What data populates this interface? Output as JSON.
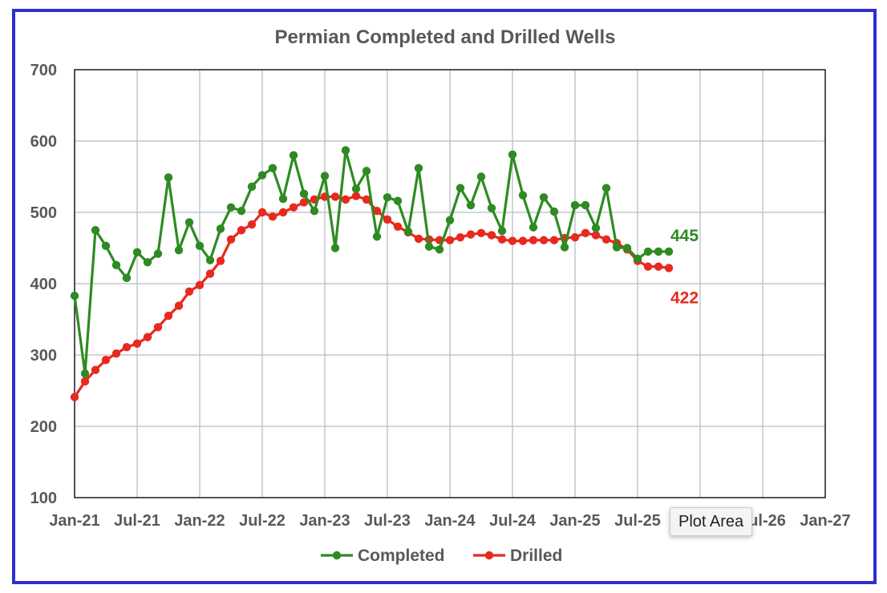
{
  "chart_data": {
    "type": "line",
    "title": "Permian Completed and Drilled Wells",
    "xlabel": "",
    "ylabel": "",
    "ylim": [
      100,
      700
    ],
    "yticks": [
      100,
      200,
      300,
      400,
      500,
      600,
      700
    ],
    "xticks": [
      "Jan-21",
      "Jul-21",
      "Jan-22",
      "Jul-22",
      "Jan-23",
      "Jul-23",
      "Jan-24",
      "Jul-24",
      "Jan-25",
      "Jul-25",
      "Jan-26",
      "Jul-26",
      "Jan-27"
    ],
    "x_start": "Jan-21",
    "grid": true,
    "legend_position": "bottom",
    "series": [
      {
        "name": "Completed",
        "color": "#2e8b22",
        "end_label": "445",
        "values": [
          383,
          274,
          475,
          453,
          426,
          408,
          444,
          430,
          442,
          549,
          447,
          486,
          453,
          433,
          477,
          507,
          502,
          536,
          552,
          562,
          519,
          580,
          526,
          502,
          551,
          450,
          587,
          533,
          558,
          466,
          521,
          516,
          473,
          562,
          452,
          448,
          489,
          534,
          510,
          550,
          506,
          474,
          581,
          524,
          479,
          521,
          501,
          451,
          510,
          510,
          478,
          534,
          451,
          450,
          435,
          445,
          445,
          445
        ]
      },
      {
        "name": "Drilled",
        "color": "#e8291e",
        "end_label": "422",
        "values": [
          241,
          263,
          279,
          293,
          302,
          311,
          316,
          325,
          339,
          355,
          369,
          389,
          398,
          414,
          432,
          462,
          475,
          483,
          500,
          494,
          500,
          507,
          514,
          518,
          522,
          522,
          518,
          523,
          518,
          502,
          490,
          480,
          472,
          463,
          462,
          461,
          461,
          465,
          469,
          471,
          468,
          462,
          460,
          460,
          461,
          461,
          461,
          464,
          465,
          471,
          468,
          462,
          457,
          448,
          432,
          424,
          424,
          422
        ]
      }
    ]
  },
  "tooltip": {
    "text": "Plot Area"
  },
  "colors": {
    "frame_border": "#2f2fd0",
    "grid": "#b8bcc4",
    "axis": "#000000",
    "text": "#595959"
  }
}
